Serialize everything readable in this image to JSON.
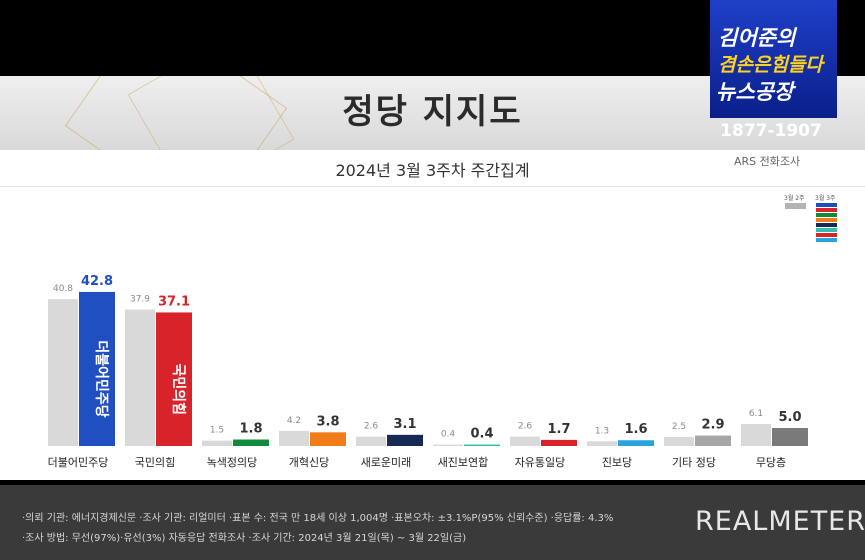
{
  "header": {
    "title": "정당 지지도",
    "subtitle": "2024년 3월 3주차 주간집계",
    "logo_line1": "김어준의",
    "logo_line2": "겸손은힘들다",
    "logo_line3": "뉴스공장",
    "phone": "1877-1907",
    "method_tag": "ARS 전화조사"
  },
  "colors": {
    "prev": "#d9d9d9",
    "current": [
      "#1f4fc0",
      "#d8232a",
      "#128a3c",
      "#f07c1a",
      "#162a54",
      "#2ebfb2",
      "#d8232a",
      "#2aa5dc",
      "#a6a6a6",
      "#7a7a7a"
    ]
  },
  "chart_data": {
    "type": "bar",
    "title": "정당 지지도",
    "subtitle": "2024년 3월 3주차 주간집계",
    "categories": [
      "더불어민주당",
      "국민의힘",
      "녹색정의당",
      "개혁신당",
      "새로운미래",
      "새진보연합",
      "자유통일당",
      "진보당",
      "기타 정당",
      "무당층"
    ],
    "series": [
      {
        "name": "3월 2주",
        "values": [
          40.8,
          37.9,
          1.5,
          4.2,
          2.6,
          0.4,
          2.6,
          1.3,
          2.5,
          6.1
        ]
      },
      {
        "name": "3월 3주",
        "values": [
          42.8,
          37.1,
          1.8,
          3.8,
          3.1,
          0.4,
          1.7,
          1.6,
          2.9,
          5.0
        ]
      }
    ],
    "bar_inner_labels": [
      "더불어민주당",
      "국민의힘"
    ],
    "ylim": [
      0,
      50
    ],
    "legend": "top-right",
    "grid": false
  },
  "footer": {
    "line1": "·의뢰 기관: 에너지경제신문 ·조사 기관: 리얼미터 ·표본 수: 전국 만 18세 이상 1,004명 ·표본오차: ±3.1%P(95% 신뢰수준) ·응답률: 4.3%",
    "line2": "·조사 방법: 무선(97%)·유선(3%) 자동응답 전화조사 ·조사 기간: 2024년 3월 21일(목) ~ 3월 22일(금)",
    "brand": "REALMETER"
  }
}
